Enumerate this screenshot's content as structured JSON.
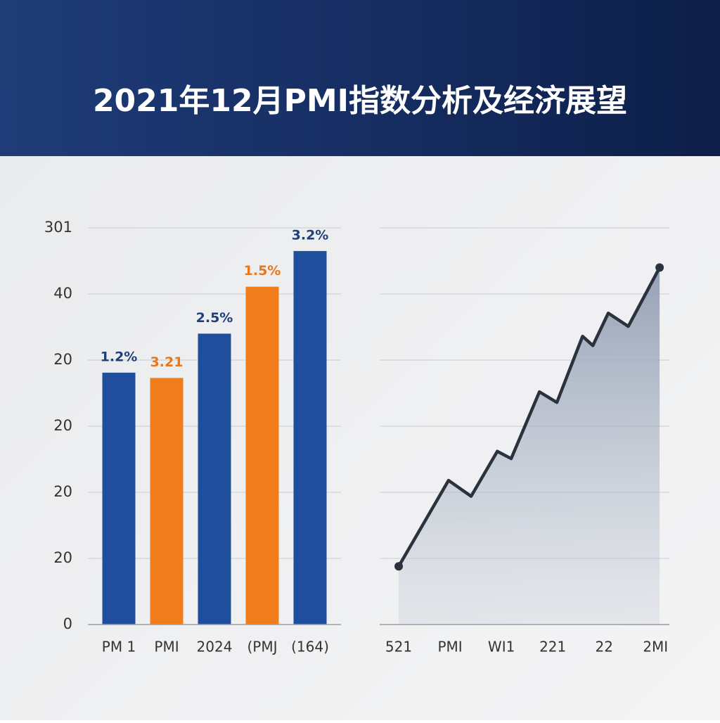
{
  "title": "2021年12月PMI指数分析及经济展望",
  "chart_data": [
    {
      "type": "bar",
      "categories": [
        "PM 1",
        "PMI",
        "2024",
        "(PMJ",
        "(164)"
      ],
      "values": [
        3.81,
        3.73,
        4.4,
        5.11,
        5.65
      ],
      "annotations": [
        "1.2%",
        "3.21",
        "2.5%",
        "1.5%",
        "3.2%"
      ],
      "colors": [
        "#1f4f9c",
        "#f07c1b",
        "#1f4f9c",
        "#f07c1b",
        "#1f4f9c"
      ],
      "ylim": [
        0,
        6
      ],
      "yticks": [
        0,
        {
          "value": 1,
          "label": "20"
        },
        {
          "value": 2,
          "label": "20"
        },
        {
          "value": 3,
          "label": "20"
        },
        {
          "value": 4,
          "label": "20"
        },
        {
          "value": 5,
          "label": "40"
        },
        {
          "value": 6,
          "label": "301"
        }
      ],
      "grid": true
    },
    {
      "type": "area",
      "x": [
        0,
        0.97,
        1.41,
        1.92,
        2.19,
        2.74,
        3.08,
        3.58,
        3.78,
        4.08,
        4.47,
        5.08
      ],
      "values": [
        0.88,
        2.18,
        1.94,
        2.62,
        2.51,
        3.52,
        3.36,
        4.36,
        4.22,
        4.71,
        4.51,
        5.4
      ],
      "color": "#2a323e",
      "xlim": [
        -0.37,
        5.27
      ],
      "xticks": [
        {
          "value": 0,
          "label": "521"
        },
        {
          "value": 1,
          "label": "PMI"
        },
        {
          "value": 2,
          "label": "WI1"
        },
        {
          "value": 3,
          "label": "221"
        },
        {
          "value": 4,
          "label": "22"
        },
        {
          "value": 5,
          "label": "2MI"
        }
      ],
      "ylim": [
        0,
        6
      ],
      "yticks": [
        0,
        1,
        2,
        3,
        4,
        5,
        6
      ],
      "show_y_tick_labels": false,
      "grid": true
    }
  ]
}
